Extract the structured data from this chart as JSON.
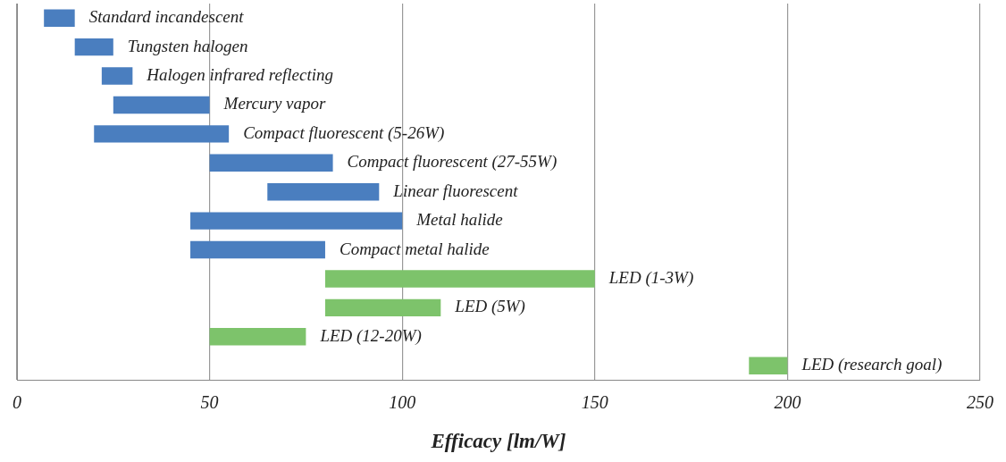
{
  "chart_data": {
    "type": "bar",
    "orientation": "horizontal",
    "xlabel": "Efficacy [lm/W]",
    "categories": [
      "Standard incandescent",
      "Tungsten halogen",
      "Halogen infrared reflecting",
      "Mercury vapor",
      "Compact fluorescent (5-26W)",
      "Compact fluorescent (27-55W)",
      "Linear fluorescent",
      "Metal halide",
      "Compact metal halide",
      "LED (1-3W)",
      "LED (5W)",
      "LED (12-20W)",
      "LED (research goal)"
    ],
    "base": [
      7,
      15,
      22,
      25,
      20,
      50,
      65,
      45,
      45,
      80,
      80,
      50,
      190
    ],
    "values": [
      8,
      10,
      8,
      25,
      35,
      32,
      29,
      55,
      35,
      70,
      30,
      25,
      10
    ],
    "colors": [
      "#4a7ebf",
      "#4a7ebf",
      "#4a7ebf",
      "#4a7ebf",
      "#4a7ebf",
      "#4a7ebf",
      "#4a7ebf",
      "#4a7ebf",
      "#4a7ebf",
      "#7dc36b",
      "#7dc36b",
      "#7dc36b",
      "#7dc36b"
    ],
    "xlim": [
      0,
      250
    ],
    "xticks": [
      0,
      50,
      100,
      150,
      200,
      250
    ],
    "grid": "x",
    "tick_labels": "x",
    "legend": false
  }
}
